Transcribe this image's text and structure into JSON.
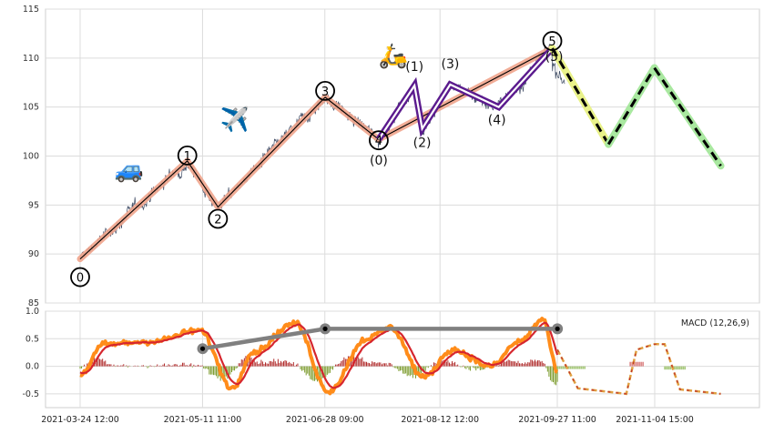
{
  "chart_data": [
    {
      "type": "line",
      "panel": "price",
      "ylim": [
        85,
        115
      ],
      "y_ticks": [
        "85",
        "90",
        "95",
        "100",
        "105",
        "110",
        "115"
      ],
      "grid": true,
      "primary_wave": {
        "points": [
          {
            "date": "2021-03-24",
            "value": 89.5,
            "label": "0"
          },
          {
            "date": "2021-05-05",
            "value": 99.5,
            "label": "1"
          },
          {
            "date": "2021-05-17",
            "value": 94.8,
            "label": "2"
          },
          {
            "date": "2021-06-28",
            "value": 106.0,
            "label": "3"
          },
          {
            "date": "2021-07-19",
            "value": 101.7,
            "label": "4"
          },
          {
            "date": "2021-09-25",
            "value": 111.0,
            "label": "5"
          }
        ]
      },
      "sub_wave": {
        "points": [
          {
            "date": "2021-07-19",
            "value": 101.7,
            "label": "(0)"
          },
          {
            "date": "2021-08-02",
            "value": 107.2,
            "label": "(1)"
          },
          {
            "date": "2021-08-05",
            "value": 102.8,
            "label": "(2)"
          },
          {
            "date": "2021-08-16",
            "value": 107.3,
            "label": "(3)"
          },
          {
            "date": "2021-09-04",
            "value": 105.0,
            "label": "(4)"
          },
          {
            "date": "2021-09-25",
            "value": 111.0,
            "label": "(5)"
          }
        ]
      },
      "projection": {
        "points": [
          {
            "date": "2021-09-25",
            "value": 111.0
          },
          {
            "date": "2021-10-17",
            "value": 101.2
          },
          {
            "date": "2021-11-04",
            "value": 109.0
          },
          {
            "date": "2021-11-30",
            "value": 99.0
          }
        ]
      },
      "emoji_markers": [
        {
          "symbol": "🚙",
          "wave": "1"
        },
        {
          "symbol": "✈️",
          "wave": "3"
        },
        {
          "symbol": "🛵",
          "wave": "5"
        }
      ],
      "colors": {
        "price": "#3d4a63",
        "primary_wave": "#f0a48c",
        "sub_wave": "#5b1b8e",
        "projection_yellow": "#e9f28a",
        "projection_green": "#a9e8a0",
        "projection_dash": "#000000"
      }
    },
    {
      "type": "line",
      "panel": "macd",
      "legend": "MACD (12,26,9)",
      "legend_position": "top-right",
      "ylim": [
        -0.75,
        1.0
      ],
      "y_ticks": [
        "1.0",
        "0.5",
        "0.0",
        "-0.5"
      ],
      "x_ticks": [
        "2021-03-24 12:00",
        "2021-05-11 11:00",
        "2021-06-28 09:00",
        "2021-08-12 12:00",
        "2021-09-27 11:00",
        "2021-11-04 15:00"
      ],
      "peak_line": [
        {
          "date": "2021-05-11",
          "value": 0.32
        },
        {
          "date": "2021-06-28",
          "value": 0.68
        },
        {
          "date": "2021-09-27",
          "value": 0.68
        }
      ],
      "projection_macd": {
        "points": [
          {
            "date": "2021-09-27",
            "value": 0.3
          },
          {
            "date": "2021-10-05",
            "value": -0.4
          },
          {
            "date": "2021-10-24",
            "value": -0.5
          },
          {
            "date": "2021-10-28",
            "value": 0.3
          },
          {
            "date": "2021-11-04",
            "value": 0.4
          },
          {
            "date": "2021-11-08",
            "value": 0.4
          },
          {
            "date": "2021-11-14",
            "value": -0.42
          },
          {
            "date": "2021-11-30",
            "value": -0.5
          }
        ]
      },
      "colors": {
        "macd": "#ff8c1a",
        "signal": "#d6262e",
        "hist_pos": "#b02a2a",
        "hist_neg": "#7a9a2a",
        "peak_line": "#808080",
        "proj_dash": "#e0a040",
        "proj_dash2": "#c03030"
      }
    }
  ]
}
